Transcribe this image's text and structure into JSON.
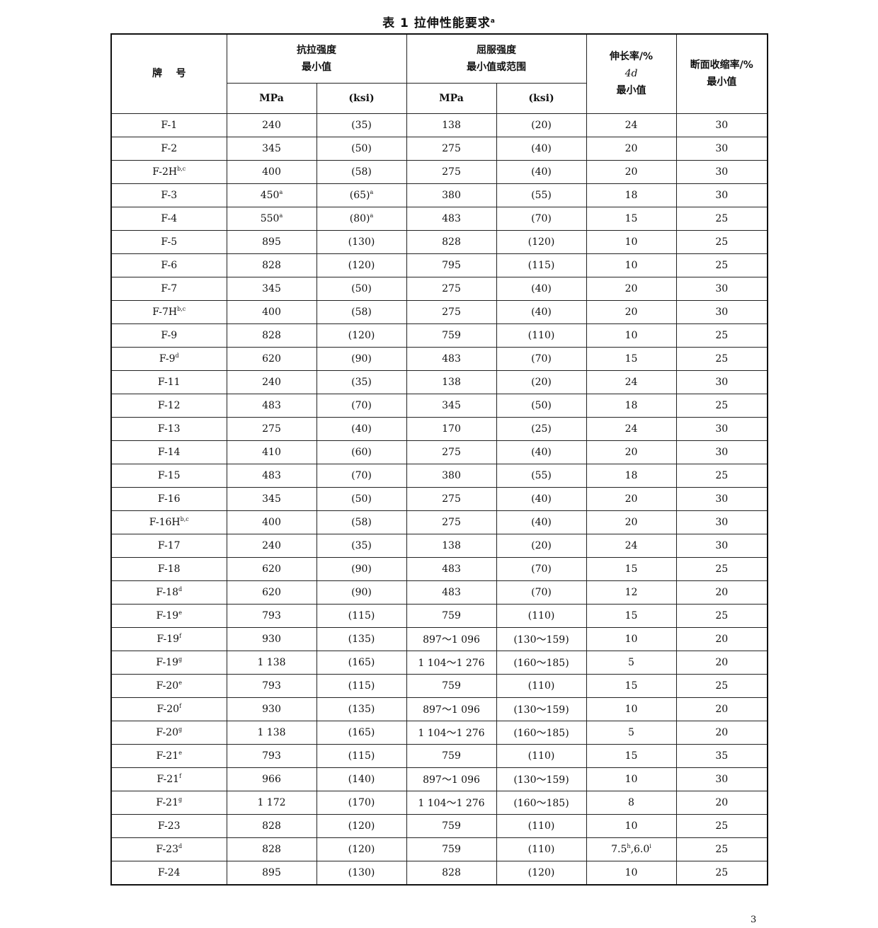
{
  "title": {
    "text": "表 1  拉伸性能要求",
    "sup": "a"
  },
  "header": {
    "grade": "牌    号",
    "tensile": "抗拉强度",
    "tensile_sub": "最小值",
    "yield": "屈服强度",
    "yield_sub": "最小值或范围",
    "elong": "伸长率/%",
    "elong_gauge": "4d",
    "elong_sub": "最小值",
    "reduction": "断面收缩率/%",
    "reduction_sub": "最小值",
    "mpa": "MPa",
    "ksi": "(ksi)"
  },
  "rows": [
    [
      "F-1",
      "240",
      "(35)",
      "138",
      "(20)",
      "24",
      "30"
    ],
    [
      "F-2",
      "345",
      "(50)",
      "275",
      "(40)",
      "20",
      "30"
    ],
    [
      {
        "t": "F-2H",
        "s": "b,c"
      },
      "400",
      "(58)",
      "275",
      "(40)",
      "20",
      "30"
    ],
    [
      "F-3",
      {
        "t": "450",
        "s": "a"
      },
      {
        "t": "(65)",
        "s": "a"
      },
      "380",
      "(55)",
      "18",
      "30"
    ],
    [
      "F-4",
      {
        "t": "550",
        "s": "a"
      },
      {
        "t": "(80)",
        "s": "a"
      },
      "483",
      "(70)",
      "15",
      "25"
    ],
    [
      "F-5",
      "895",
      "(130)",
      "828",
      "(120)",
      "10",
      "25"
    ],
    [
      "F-6",
      "828",
      "(120)",
      "795",
      "(115)",
      "10",
      "25"
    ],
    [
      "F-7",
      "345",
      "(50)",
      "275",
      "(40)",
      "20",
      "30"
    ],
    [
      {
        "t": "F-7H",
        "s": "b,c"
      },
      "400",
      "(58)",
      "275",
      "(40)",
      "20",
      "30"
    ],
    [
      "F-9",
      "828",
      "(120)",
      "759",
      "(110)",
      "10",
      "25"
    ],
    [
      {
        "t": "F-9",
        "s": "d"
      },
      "620",
      "(90)",
      "483",
      "(70)",
      "15",
      "25"
    ],
    [
      "F-11",
      "240",
      "(35)",
      "138",
      "(20)",
      "24",
      "30"
    ],
    [
      "F-12",
      "483",
      "(70)",
      "345",
      "(50)",
      "18",
      "25"
    ],
    [
      "F-13",
      "275",
      "(40)",
      "170",
      "(25)",
      "24",
      "30"
    ],
    [
      "F-14",
      "410",
      "(60)",
      "275",
      "(40)",
      "20",
      "30"
    ],
    [
      "F-15",
      "483",
      "(70)",
      "380",
      "(55)",
      "18",
      "25"
    ],
    [
      "F-16",
      "345",
      "(50)",
      "275",
      "(40)",
      "20",
      "30"
    ],
    [
      {
        "t": "F-16H",
        "s": "b,c"
      },
      "400",
      "(58)",
      "275",
      "(40)",
      "20",
      "30"
    ],
    [
      "F-17",
      "240",
      "(35)",
      "138",
      "(20)",
      "24",
      "30"
    ],
    [
      "F-18",
      "620",
      "(90)",
      "483",
      "(70)",
      "15",
      "25"
    ],
    [
      {
        "t": "F-18",
        "s": "d"
      },
      "620",
      "(90)",
      "483",
      "(70)",
      "12",
      "20"
    ],
    [
      {
        "t": "F-19",
        "s": "e"
      },
      "793",
      "(115)",
      "759",
      "(110)",
      "15",
      "25"
    ],
    [
      {
        "t": "F-19",
        "s": "f"
      },
      "930",
      "(135)",
      "897～1 096",
      "(130～159)",
      "10",
      "20"
    ],
    [
      {
        "t": "F-19",
        "s": "g"
      },
      "1 138",
      "(165)",
      "1 104～1 276",
      "(160～185)",
      "5",
      "20"
    ],
    [
      {
        "t": "F-20",
        "s": "e"
      },
      "793",
      "(115)",
      "759",
      "(110)",
      "15",
      "25"
    ],
    [
      {
        "t": "F-20",
        "s": "f"
      },
      "930",
      "(135)",
      "897～1 096",
      "(130～159)",
      "10",
      "20"
    ],
    [
      {
        "t": "F-20",
        "s": "g"
      },
      "1 138",
      "(165)",
      "1 104～1 276",
      "(160～185)",
      "5",
      "20"
    ],
    [
      {
        "t": "F-21",
        "s": "e"
      },
      "793",
      "(115)",
      "759",
      "(110)",
      "15",
      "35"
    ],
    [
      {
        "t": "F-21",
        "s": "f"
      },
      "966",
      "(140)",
      "897～1 096",
      "(130～159)",
      "10",
      "30"
    ],
    [
      {
        "t": "F-21",
        "s": "g"
      },
      "1 172",
      "(170)",
      "1 104～1 276",
      "(160～185)",
      "8",
      "20"
    ],
    [
      "F-23",
      "828",
      "(120)",
      "759",
      "(110)",
      "10",
      "25"
    ],
    [
      {
        "t": "F-23",
        "s": "d"
      },
      "828",
      "(120)",
      "759",
      "(110)",
      [
        {
          "t": "7.5",
          "s": "h"
        },
        {
          "t": ",6.0",
          "s": "i"
        }
      ],
      "25"
    ],
    [
      "F-24",
      "895",
      "(130)",
      "828",
      "(120)",
      "10",
      "25"
    ]
  ],
  "page_number": "3"
}
